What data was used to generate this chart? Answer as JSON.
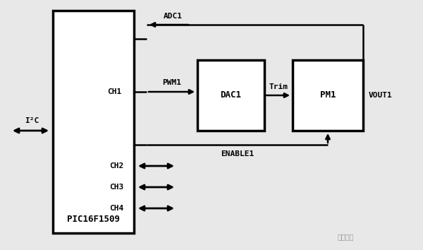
{
  "background_color": "#e8e8e8",
  "pic_label": "PIC16F1509",
  "dac_label": "DAC1",
  "pm_label": "PM1",
  "adc1_label": "ADC1",
  "pwm1_label": "PWM1",
  "enable1_label": "ENABLE1",
  "trim_label": "Trim",
  "vout1_label": "VOUT1",
  "ch1_label": "CH1",
  "ch2_label": "CH2",
  "ch3_label": "CH3",
  "ch4_label": "CH4",
  "i2c_label": "I²C",
  "watermark": "贸泽电子",
  "line_color": "#000000",
  "lw": 1.8,
  "alw": 2.0,
  "fs": 8,
  "fs_pic": 9
}
